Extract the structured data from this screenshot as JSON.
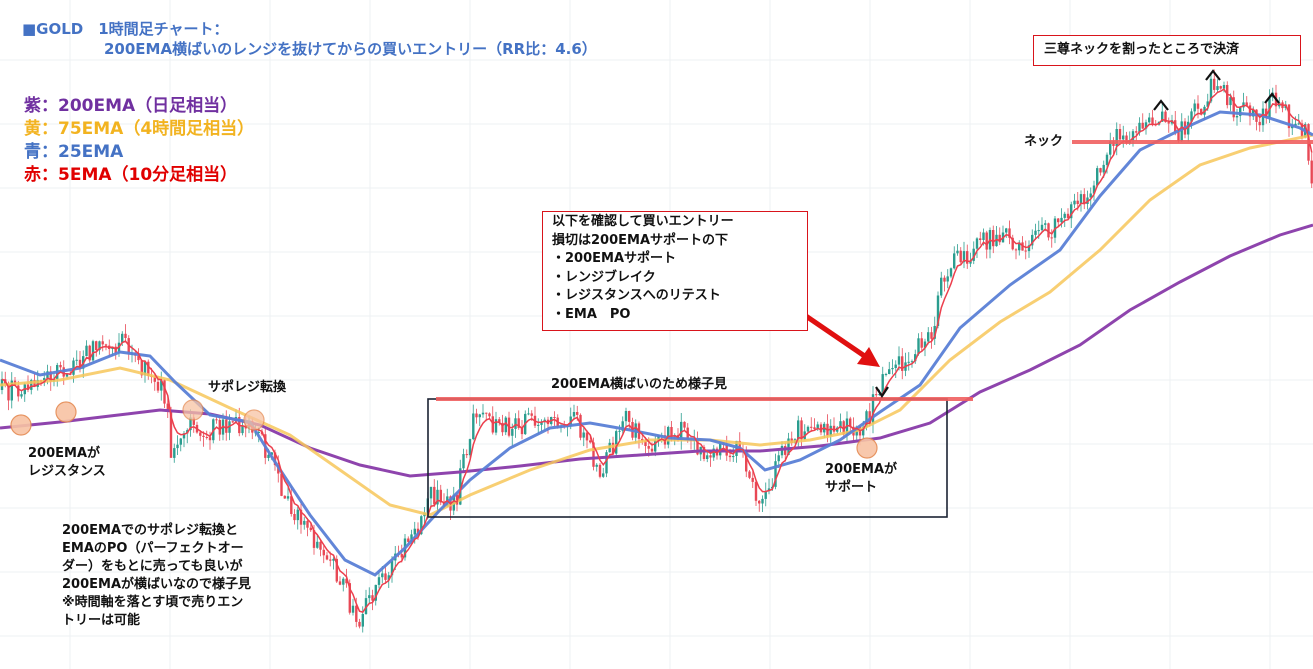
{
  "colors": {
    "ema200": "#8e44ad",
    "ema75": "#f7c75a",
    "ema25": "#5a7fd6",
    "ema5": "#ec3f4d",
    "bull": "#2a9d8f",
    "bear": "#e84855",
    "circle_fill": "#f8c3a4",
    "circle_stroke": "#e58a52",
    "box": "#1c2333",
    "arrow": "#e01010",
    "neck": "#f06060"
  },
  "title": {
    "line1": "■GOLD　1時間足チャート：",
    "line2": "200EMA横ばいのレンジを抜けてからの買いエントリー（RR比：4.6）"
  },
  "legend": [
    {
      "text": "紫：200EMA（日足相当）",
      "color": "#7030a0"
    },
    {
      "text": "黄：75EMA（4時間足相当）",
      "color": "#f2b320"
    },
    {
      "text": "青：25EMA",
      "color": "#4472c4"
    },
    {
      "text": "赤：5EMA（10分足相当）",
      "color": "#e00000"
    }
  ],
  "annotations": {
    "resistance": [
      "200EMAが",
      "レジスタンス"
    ],
    "sr_flip": "サポレジ転換",
    "note_left": [
      "200EMAでのサポレジ転換と",
      "EMAのPO（パーフェクトオー",
      "ダー）をもとに売っても良いが",
      "200EMAが横ばいなので様子見",
      "※時間軸を落とす頃で売りエン",
      "トリーは可能"
    ],
    "range": "200EMA横ばいのため様子見",
    "support": [
      "200EMAが",
      "サポート"
    ],
    "entry_box": [
      "以下を確認して買いエントリー",
      "損切は200EMAサポートの下",
      "・200EMAサポート",
      "・レンジブレイク",
      "・レジスタンスへのリテスト",
      "・EMA　PO"
    ],
    "exit_box": "三尊ネックを割ったところで決済",
    "neck": "ネック"
  },
  "chart_data": {
    "type": "candlestick",
    "symbol": "GOLD",
    "timeframe": "1時間足",
    "series_names": [
      "200EMA",
      "75EMA",
      "25EMA",
      "5EMA"
    ],
    "price_path": [
      [
        0,
        390
      ],
      [
        22,
        392
      ],
      [
        45,
        378
      ],
      [
        70,
        370
      ],
      [
        100,
        342
      ],
      [
        125,
        345
      ],
      [
        145,
        370
      ],
      [
        165,
        395
      ],
      [
        172,
        462
      ],
      [
        185,
        420
      ],
      [
        200,
        430
      ],
      [
        225,
        430
      ],
      [
        245,
        420
      ],
      [
        262,
        440
      ],
      [
        290,
        505
      ],
      [
        320,
        545
      ],
      [
        345,
        588
      ],
      [
        358,
        630
      ],
      [
        375,
        585
      ],
      [
        392,
        560
      ],
      [
        410,
        545
      ],
      [
        430,
        495
      ],
      [
        455,
        505
      ],
      [
        472,
        420
      ],
      [
        495,
        425
      ],
      [
        520,
        425
      ],
      [
        545,
        415
      ],
      [
        575,
        420
      ],
      [
        600,
        470
      ],
      [
        625,
        420
      ],
      [
        650,
        445
      ],
      [
        680,
        430
      ],
      [
        700,
        450
      ],
      [
        740,
        445
      ],
      [
        760,
        510
      ],
      [
        775,
        470
      ],
      [
        795,
        430
      ],
      [
        830,
        425
      ],
      [
        865,
        425
      ],
      [
        880,
        385
      ],
      [
        905,
        360
      ],
      [
        930,
        340
      ],
      [
        945,
        270
      ],
      [
        985,
        240
      ],
      [
        1000,
        235
      ],
      [
        1020,
        245
      ],
      [
        1050,
        230
      ],
      [
        1090,
        190
      ],
      [
        1115,
        140
      ],
      [
        1140,
        125
      ],
      [
        1160,
        112
      ],
      [
        1175,
        135
      ],
      [
        1200,
        108
      ],
      [
        1215,
        78
      ],
      [
        1235,
        110
      ],
      [
        1260,
        120
      ],
      [
        1275,
        98
      ],
      [
        1295,
        130
      ],
      [
        1305,
        130
      ],
      [
        1313,
        205
      ]
    ],
    "ema200_path": [
      [
        0,
        428
      ],
      [
        60,
        422
      ],
      [
        110,
        416
      ],
      [
        160,
        410
      ],
      [
        210,
        414
      ],
      [
        260,
        425
      ],
      [
        310,
        448
      ],
      [
        360,
        465
      ],
      [
        410,
        476
      ],
      [
        460,
        472
      ],
      [
        520,
        466
      ],
      [
        580,
        459
      ],
      [
        640,
        455
      ],
      [
        700,
        451
      ],
      [
        760,
        451
      ],
      [
        820,
        446
      ],
      [
        880,
        438
      ],
      [
        930,
        423
      ],
      [
        980,
        392
      ],
      [
        1030,
        370
      ],
      [
        1080,
        345
      ],
      [
        1130,
        310
      ],
      [
        1180,
        282
      ],
      [
        1230,
        256
      ],
      [
        1280,
        235
      ],
      [
        1313,
        225
      ]
    ],
    "ema75_path": [
      [
        0,
        385
      ],
      [
        60,
        380
      ],
      [
        120,
        368
      ],
      [
        170,
        380
      ],
      [
        230,
        408
      ],
      [
        290,
        435
      ],
      [
        340,
        470
      ],
      [
        390,
        505
      ],
      [
        430,
        515
      ],
      [
        470,
        495
      ],
      [
        530,
        470
      ],
      [
        590,
        450
      ],
      [
        650,
        440
      ],
      [
        710,
        440
      ],
      [
        760,
        445
      ],
      [
        810,
        440
      ],
      [
        860,
        430
      ],
      [
        900,
        410
      ],
      [
        950,
        360
      ],
      [
        1000,
        322
      ],
      [
        1050,
        292
      ],
      [
        1100,
        250
      ],
      [
        1150,
        200
      ],
      [
        1200,
        165
      ],
      [
        1250,
        148
      ],
      [
        1313,
        135
      ]
    ],
    "ema25_path": [
      [
        0,
        360
      ],
      [
        40,
        375
      ],
      [
        80,
        368
      ],
      [
        120,
        352
      ],
      [
        150,
        356
      ],
      [
        175,
        382
      ],
      [
        210,
        415
      ],
      [
        250,
        422
      ],
      [
        275,
        462
      ],
      [
        310,
        515
      ],
      [
        345,
        560
      ],
      [
        375,
        575
      ],
      [
        405,
        548
      ],
      [
        440,
        510
      ],
      [
        470,
        480
      ],
      [
        510,
        448
      ],
      [
        550,
        428
      ],
      [
        590,
        423
      ],
      [
        630,
        430
      ],
      [
        670,
        438
      ],
      [
        710,
        440
      ],
      [
        740,
        448
      ],
      [
        765,
        470
      ],
      [
        800,
        460
      ],
      [
        840,
        440
      ],
      [
        880,
        412
      ],
      [
        920,
        385
      ],
      [
        960,
        328
      ],
      [
        1010,
        285
      ],
      [
        1060,
        250
      ],
      [
        1100,
        196
      ],
      [
        1140,
        150
      ],
      [
        1180,
        130
      ],
      [
        1220,
        112
      ],
      [
        1260,
        115
      ],
      [
        1300,
        128
      ],
      [
        1313,
        135
      ]
    ],
    "range_box": {
      "label": "200EMA横ばいのため様子見"
    },
    "neckline": {
      "label": "ネック"
    }
  }
}
